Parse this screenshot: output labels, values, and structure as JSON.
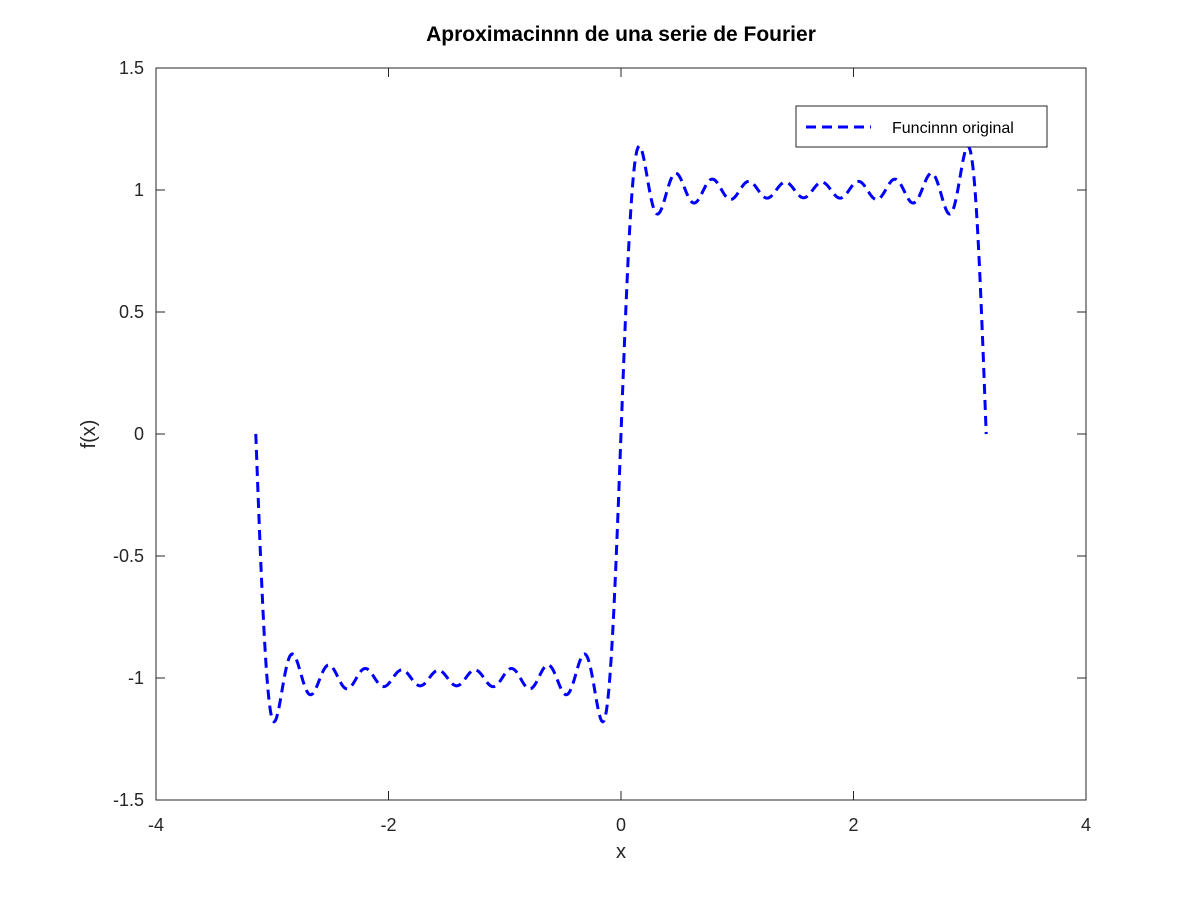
{
  "chart_data": {
    "type": "line",
    "title": "Aproximacinnn de una serie de Fourier",
    "xlabel": "x",
    "ylabel": "f(x)",
    "xlim": [
      -4,
      4
    ],
    "ylim": [
      -1.5,
      1.5
    ],
    "xticks": [
      -4,
      -2,
      0,
      2,
      4
    ],
    "yticks": [
      -1.5,
      -1,
      -0.5,
      0,
      0.5,
      1,
      1.5
    ],
    "xtick_labels": [
      "-4",
      "-2",
      "0",
      "2",
      "4"
    ],
    "ytick_labels": [
      "-1.5",
      "-1",
      "-0.5",
      "0",
      "0.5",
      "1",
      "1.5"
    ],
    "grid": false,
    "legend_position": "top-right",
    "series": [
      {
        "name": "Funcinnn original",
        "color": "#0000ff",
        "line_style": "dashed",
        "x_range": [
          -3.1416,
          3.1416
        ],
        "points": 600,
        "expression": "(4/pi) * sum over odd n from 1 to 19 of sin(n*x)/n"
      }
    ]
  }
}
